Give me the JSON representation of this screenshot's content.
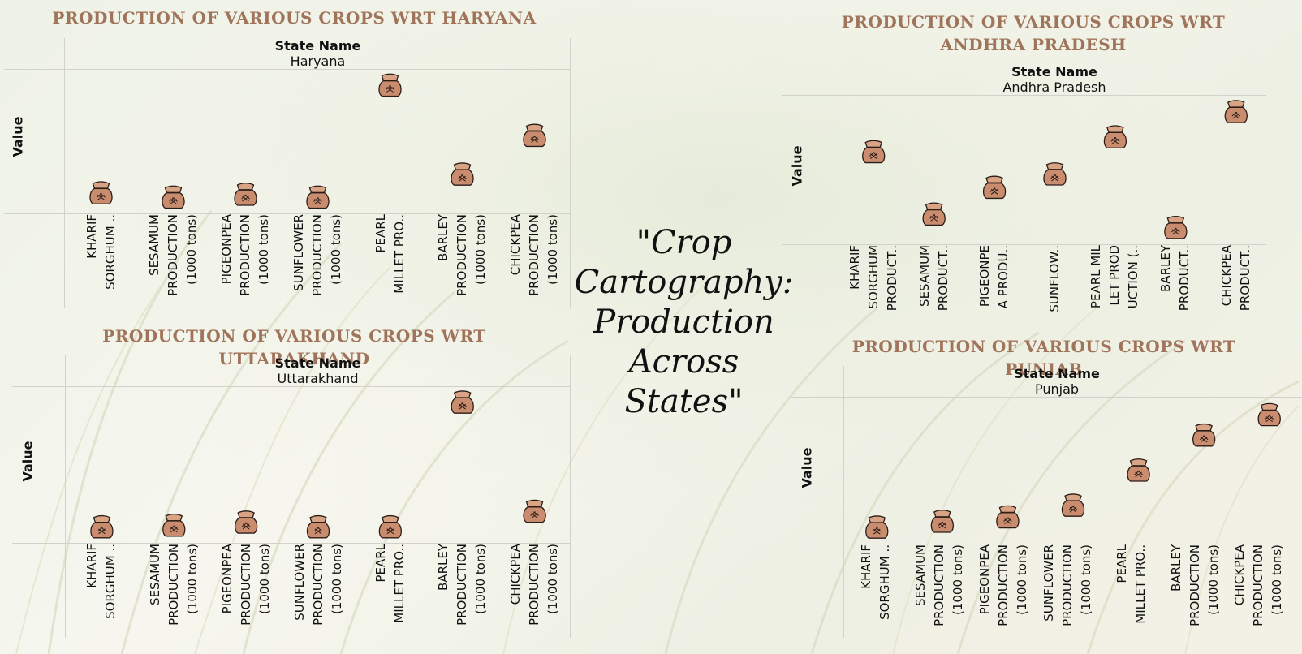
{
  "center_title": "\"Crop Cartography: Production Across States\"",
  "header_label": "State Name",
  "y_label": "Value",
  "colors": {
    "title": "#a0745a",
    "sack_fill": "#c98c6e",
    "sack_stroke": "#2b1d16"
  },
  "panels": [
    {
      "title": "PRODUCTION OF VARIOUS CROPS WRT HARYANA",
      "state": "Haryana",
      "categories": [
        "KHARIF SORGHUM ..",
        "SESAMUM PRODUCTION (1000 tons)",
        "PIGEONPEA PRODUCTION (1000 tons)",
        "SUNFLOWER PRODUCTION (1000 tons)",
        "PEARL MILLET PRO..",
        "BARLEY PRODUCTION (1000 tons)",
        "CHICKPEA PRODUCTION (1000 tons)"
      ],
      "category_lines": [
        [
          "KHARIF",
          "SORGHUM .."
        ],
        [
          "SESAMUM",
          "PRODUCTION",
          "(1000 tons)"
        ],
        [
          "PIGEONPEA",
          "PRODUCTION",
          "(1000 tons)"
        ],
        [
          "SUNFLOWER",
          "PRODUCTION",
          "(1000 tons)"
        ],
        [
          "PEARL",
          "MILLET PRO.."
        ],
        [
          "BARLEY",
          "PRODUCTION",
          "(1000 tons)"
        ],
        [
          "CHICKPEA",
          "PRODUCTION",
          "(1000 tons)"
        ]
      ]
    },
    {
      "title": "PRODUCTION OF VARIOUS CROPS WRT UTTARAKHAND",
      "state": "Uttarakhand",
      "categories": [
        "KHARIF SORGHUM ..",
        "SESAMUM PRODUCTION (1000 tons)",
        "PIGEONPEA PRODUCTION (1000 tons)",
        "SUNFLOWER PRODUCTION (1000 tons)",
        "PEARL MILLET PRO..",
        "BARLEY PRODUCTION (1000 tons)",
        "CHICKPEA PRODUCTION (1000 tons)"
      ],
      "category_lines": [
        [
          "KHARIF",
          "SORGHUM .."
        ],
        [
          "SESAMUM",
          "PRODUCTION",
          "(1000 tons)"
        ],
        [
          "PIGEONPEA",
          "PRODUCTION",
          "(1000 tons)"
        ],
        [
          "SUNFLOWER",
          "PRODUCTION",
          "(1000 tons)"
        ],
        [
          "PEARL",
          "MILLET PRO.."
        ],
        [
          "BARLEY",
          "PRODUCTION",
          "(1000 tons)"
        ],
        [
          "CHICKPEA",
          "PRODUCTION",
          "(1000 tons)"
        ]
      ]
    },
    {
      "title": "PRODUCTION OF VARIOUS CROPS WRT ANDHRA PRADESH",
      "state": "Andhra Pradesh",
      "categories": [
        "KHARIF SORGHUM PRODUCT..",
        "SESAMUM PRODUCT..",
        "PIGEONPEA PRODU..",
        "SUNFLOW..",
        "PEARL MILLET PRODUCTION (..",
        "BARLEY PRODUCT..",
        "CHICKPEA PRODUCT.."
      ],
      "category_lines": [
        [
          "KHARIF",
          "SORGHUM",
          "PRODUCT.."
        ],
        [
          "SESAMUM",
          "PRODUCT.."
        ],
        [
          "PIGEONPE",
          "A PRODU.."
        ],
        [
          "SUNFLOW.."
        ],
        [
          "PEARL MIL",
          "LET PROD",
          "UCTION (.."
        ],
        [
          "BARLEY",
          "PRODUCT.."
        ],
        [
          "CHICKPEA",
          "PRODUCT.."
        ]
      ]
    },
    {
      "title": "PRODUCTION OF VARIOUS CROPS WRT PUNJAB",
      "state": "Punjab",
      "categories": [
        "KHARIF SORGHUM ..",
        "SESAMUM PRODUCTION (1000 tons)",
        "PIGEONPEA PRODUCTION (1000 tons)",
        "SUNFLOWER PRODUCTION (1000 tons)",
        "PEARL MILLET PRO..",
        "BARLEY PRODUCTION (1000 tons)",
        "CHICKPEA PRODUCTION (1000 tons)"
      ],
      "category_lines": [
        [
          "KHARIF",
          "SORGHUM .."
        ],
        [
          "SESAMUM",
          "PRODUCTION",
          "(1000 tons)"
        ],
        [
          "PIGEONPEA",
          "PRODUCTION",
          "(1000 tons)"
        ],
        [
          "SUNFLOWER",
          "PRODUCTION",
          "(1000 tons)"
        ],
        [
          "PEARL",
          "MILLET PRO.."
        ],
        [
          "BARLEY",
          "PRODUCTION",
          "(1000 tons)"
        ],
        [
          "CHICKPEA",
          "PRODUCTION",
          "(1000 tons)"
        ]
      ]
    }
  ],
  "chart_data": [
    {
      "type": "scatter",
      "title": "PRODUCTION OF VARIOUS CROPS WRT HARYANA",
      "ylabel": "Value",
      "categories": [
        "KHARIF SORGHUM ..",
        "SESAMUM PRODUCTION (1000 tons)",
        "PIGEONPEA PRODUCTION (1000 tons)",
        "SUNFLOWER PRODUCTION (1000 tons)",
        "PEARL MILLET PRO..",
        "BARLEY PRODUCTION (1000 tons)",
        "CHICKPEA PRODUCTION (1000 tons)"
      ],
      "values": [
        0.14,
        0.11,
        0.13,
        0.11,
        0.89,
        0.27,
        0.54
      ],
      "ylim": [
        0,
        1
      ],
      "marker": "grain-sack",
      "grid": false
    },
    {
      "type": "scatter",
      "title": "PRODUCTION OF VARIOUS CROPS WRT UTTARAKHAND",
      "ylabel": "Value",
      "categories": [
        "KHARIF SORGHUM ..",
        "SESAMUM PRODUCTION (1000 tons)",
        "PIGEONPEA PRODUCTION (1000 tons)",
        "SUNFLOWER PRODUCTION (1000 tons)",
        "PEARL MILLET PRO..",
        "BARLEY PRODUCTION (1000 tons)",
        "CHICKPEA PRODUCTION (1000 tons)"
      ],
      "values": [
        0.1,
        0.11,
        0.13,
        0.1,
        0.1,
        0.9,
        0.2
      ],
      "ylim": [
        0,
        1
      ],
      "marker": "grain-sack",
      "grid": false
    },
    {
      "type": "scatter",
      "title": "PRODUCTION OF VARIOUS CROPS WRT ANDHRA PRADESH",
      "ylabel": "Value",
      "categories": [
        "KHARIF SORGHUM PRODUCT..",
        "SESAMUM PRODUCT..",
        "PIGEONPEA PRODU..",
        "SUNFLOW..",
        "PEARL MILLET PRODUCTION (..",
        "BARLEY PRODUCT..",
        "CHICKPEA PRODUCT.."
      ],
      "values": [
        0.62,
        0.2,
        0.38,
        0.47,
        0.72,
        0.11,
        0.89
      ],
      "ylim": [
        0,
        1
      ],
      "marker": "grain-sack",
      "grid": false
    },
    {
      "type": "scatter",
      "title": "PRODUCTION OF VARIOUS CROPS WRT PUNJAB",
      "ylabel": "Value",
      "categories": [
        "KHARIF SORGHUM ..",
        "SESAMUM PRODUCTION (1000 tons)",
        "PIGEONPEA PRODUCTION (1000 tons)",
        "SUNFLOWER PRODUCTION (1000 tons)",
        "PEARL MILLET PRO..",
        "BARLEY PRODUCTION (1000 tons)",
        "CHICKPEA PRODUCTION (1000 tons)"
      ],
      "values": [
        0.11,
        0.15,
        0.18,
        0.26,
        0.5,
        0.74,
        0.88
      ],
      "ylim": [
        0,
        1
      ],
      "marker": "grain-sack",
      "grid": false
    }
  ]
}
